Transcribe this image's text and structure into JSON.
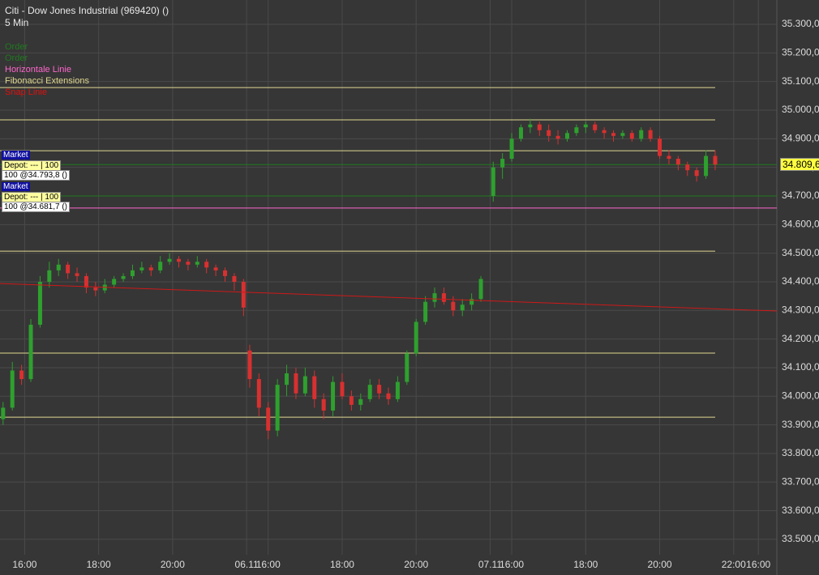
{
  "chart_data": {
    "type": "candlestick",
    "title": "Citi - Dow Jones Industrial (969420) ()",
    "subtitle": "5 Min",
    "legend": [
      {
        "name": "Order",
        "color": "#1f7a1f"
      },
      {
        "name": "Order",
        "color": "#1f7a1f"
      },
      {
        "name": "Horizontale Linie",
        "color": "#ff66cc"
      },
      {
        "name": "Fibonacci Extensions",
        "color": "#e0d890"
      },
      {
        "name": "Snap Linie",
        "color": "#e01010"
      }
    ],
    "up_color": "#2ea02e",
    "down_color": "#d83030",
    "x": [
      -7,
      -4,
      -1,
      2,
      5,
      8,
      11,
      14,
      17,
      20,
      23,
      26,
      29,
      32,
      35,
      38,
      41,
      44,
      47,
      50,
      53,
      56,
      59,
      62,
      65,
      68,
      71,
      73,
      76,
      79,
      82,
      85,
      88,
      91,
      94,
      97,
      100,
      103,
      106,
      109,
      112,
      115,
      118,
      121,
      124,
      127,
      130,
      133,
      136,
      139,
      142,
      145,
      148,
      152,
      155,
      158,
      161,
      164,
      167,
      170,
      173,
      176,
      179,
      182,
      185,
      188,
      191,
      194,
      197,
      200,
      203,
      206,
      209,
      212,
      215,
      218,
      221,
      224
    ],
    "open": [
      33920,
      33960,
      34090,
      34060,
      34250,
      34400,
      34440,
      34460,
      34430,
      34420,
      34380,
      34370,
      34390,
      34410,
      34420,
      34440,
      34450,
      34440,
      34470,
      34480,
      34470,
      34460,
      34470,
      34450,
      34440,
      34420,
      34400,
      34160,
      34060,
      33960,
      33880,
      34040,
      34080,
      34010,
      34070,
      33990,
      33950,
      34050,
      34000,
      33970,
      33990,
      34040,
      34010,
      33990,
      34050,
      34150,
      34260,
      34330,
      34360,
      34330,
      34300,
      34320,
      34340,
      34700,
      34800,
      34830,
      34900,
      34940,
      34950,
      34930,
      34910,
      34900,
      34920,
      34940,
      34950,
      34930,
      34920,
      34910,
      34920,
      34900,
      34930,
      34900,
      34840,
      34830,
      34810,
      34790,
      34770,
      34840
    ],
    "high": [
      33980,
      34120,
      34110,
      34270,
      34420,
      34470,
      34480,
      34470,
      34450,
      34430,
      34400,
      34410,
      34420,
      34430,
      34460,
      34470,
      34460,
      34490,
      34500,
      34490,
      34480,
      34490,
      34480,
      34460,
      34450,
      34430,
      34410,
      34180,
      34080,
      33980,
      34060,
      34110,
      34100,
      34100,
      34090,
      34010,
      34070,
      34080,
      34020,
      34010,
      34060,
      34060,
      34030,
      34070,
      34160,
      34270,
      34350,
      34380,
      34380,
      34350,
      34340,
      34360,
      34420,
      34820,
      34850,
      34920,
      34950,
      34970,
      34960,
      34950,
      34930,
      34930,
      34950,
      34960,
      34960,
      34940,
      34930,
      34930,
      34930,
      34940,
      34940,
      34910,
      34860,
      34840,
      34820,
      34800,
      34860,
      34860
    ],
    "low": [
      33900,
      33950,
      34040,
      34050,
      34240,
      34380,
      34420,
      34410,
      34400,
      34360,
      34350,
      34360,
      34380,
      34400,
      34410,
      34430,
      34420,
      34430,
      34460,
      34450,
      34440,
      34450,
      34430,
      34420,
      34400,
      34370,
      34280,
      34030,
      33930,
      33850,
      33860,
      34000,
      33990,
      34000,
      33960,
      33920,
      33930,
      33990,
      33950,
      33950,
      33980,
      33990,
      33970,
      33980,
      34040,
      34140,
      34250,
      34310,
      34320,
      34280,
      34280,
      34300,
      34330,
      34680,
      34760,
      34820,
      34890,
      34920,
      34910,
      34890,
      34880,
      34890,
      34910,
      34920,
      34920,
      34900,
      34890,
      34900,
      34890,
      34890,
      34890,
      34830,
      34810,
      34790,
      34770,
      34750,
      34760,
      34790
    ],
    "close": [
      33960,
      34090,
      34060,
      34250,
      34400,
      34440,
      34460,
      34430,
      34420,
      34380,
      34370,
      34390,
      34410,
      34420,
      34440,
      34450,
      34440,
      34470,
      34480,
      34470,
      34460,
      34470,
      34450,
      34440,
      34420,
      34400,
      34310,
      34060,
      33960,
      33880,
      34040,
      34080,
      34010,
      34070,
      33990,
      33950,
      34050,
      34000,
      33970,
      33990,
      34040,
      34010,
      33990,
      34050,
      34150,
      34260,
      34330,
      34360,
      34330,
      34300,
      34320,
      34340,
      34410,
      34800,
      34830,
      34900,
      34940,
      34950,
      34930,
      34910,
      34900,
      34920,
      34940,
      34950,
      34930,
      34920,
      34910,
      34920,
      34900,
      34930,
      34900,
      34840,
      34830,
      34810,
      34790,
      34770,
      34840,
      34810
    ],
    "xlim": [
      -8,
      244
    ],
    "xticks": [
      {
        "value": 0,
        "label": "16:00"
      },
      {
        "value": 24,
        "label": "18:00"
      },
      {
        "value": 48,
        "label": "20:00"
      },
      {
        "value": 72,
        "label": "06.11"
      },
      {
        "value": 79,
        "label": "16:00"
      },
      {
        "value": 103,
        "label": "18:00"
      },
      {
        "value": 127,
        "label": "20:00"
      },
      {
        "value": 151,
        "label": "07.11"
      },
      {
        "value": 158,
        "label": "16:00"
      },
      {
        "value": 182,
        "label": "18:00"
      },
      {
        "value": 206,
        "label": "20:00"
      },
      {
        "value": 230,
        "label": "22:00"
      },
      {
        "value": 238,
        "label": "16:00"
      }
    ],
    "ylim": [
      33446,
      35385
    ],
    "yticks": [
      {
        "value": 33500,
        "label": "33.500,0"
      },
      {
        "value": 33600,
        "label": "33.600,0"
      },
      {
        "value": 33700,
        "label": "33.700,0"
      },
      {
        "value": 33800,
        "label": "33.800,0"
      },
      {
        "value": 33900,
        "label": "33.900,0"
      },
      {
        "value": 34000,
        "label": "34.000,0"
      },
      {
        "value": 34100,
        "label": "34.100,0"
      },
      {
        "value": 34200,
        "label": "34.200,0"
      },
      {
        "value": 34300,
        "label": "34.300,0"
      },
      {
        "value": 34400,
        "label": "34.400,0"
      },
      {
        "value": 34500,
        "label": "34.500,0"
      },
      {
        "value": 34600,
        "label": "34.600,0"
      },
      {
        "value": 34700,
        "label": "34.700,0"
      },
      {
        "value": 34800,
        "label": "34.800,0"
      },
      {
        "value": 34900,
        "label": "34.900,0"
      },
      {
        "value": 35000,
        "label": "35.000,0"
      },
      {
        "value": 35100,
        "label": "35.100,0"
      },
      {
        "value": 35200,
        "label": "35.200,0"
      },
      {
        "value": 35300,
        "label": "35.300,0"
      }
    ],
    "grid": true,
    "hlines": [
      {
        "value": 35079,
        "color": "#e0d890",
        "x_end": 224
      },
      {
        "value": 34966,
        "color": "#e0d890",
        "x_end": 224
      },
      {
        "value": 34858,
        "color": "#e0d890",
        "x_end": 224
      },
      {
        "value": 34507,
        "color": "#e0d890",
        "x_end": 224
      },
      {
        "value": 34151,
        "color": "#e0d890",
        "x_end": 224
      },
      {
        "value": 33927,
        "color": "#e0d890",
        "x_end": 224
      },
      {
        "value": 34809.6,
        "color": "#1f7a1f",
        "x_end": 244
      },
      {
        "value": 34700,
        "color": "#1f7a1f",
        "x_end": 244
      },
      {
        "value": 34658,
        "color": "#ff66cc",
        "x_end": 244
      }
    ],
    "trendline": {
      "x": [
        -8,
        244
      ],
      "values": [
        34394,
        34298
      ],
      "color": "#d01818"
    },
    "last_price": {
      "value": 34809.6,
      "label": "34.809,6"
    },
    "orders": [
      {
        "type": "Market",
        "depot": "Depot: --- | 100",
        "fill": "100 @34.793,8 ()"
      },
      {
        "type": "Market",
        "depot": "Depot: --- | 100",
        "fill": "100 @34.681,7 ()"
      }
    ]
  }
}
